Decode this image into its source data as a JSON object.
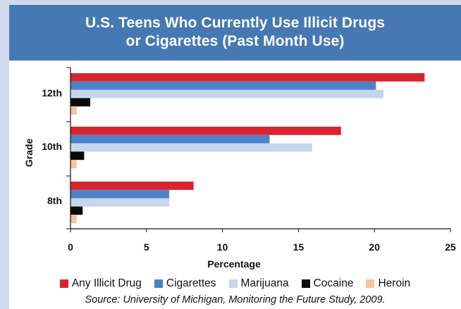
{
  "title_line1": "U.S. Teens Who Currently Use Illicit Drugs",
  "title_line2": "or Cigarettes (Past Month Use)",
  "source": "Source: University of Michigan, Monitoring the Future Study, 2009.",
  "colors": {
    "title_bg": "#4678b3",
    "page_bg": "#d3d9ec",
    "Any Illicit Drug": "#d7242f",
    "Cigarettes": "#4c82c7",
    "Marijuana": "#c6d6ec",
    "Cocaine": "#0a0a0a",
    "Heroin": "#f7c39a"
  },
  "chart_data": {
    "type": "bar",
    "orientation": "horizontal",
    "categories": [
      "12th",
      "10th",
      "8th"
    ],
    "series": [
      {
        "name": "Any Illicit Drug",
        "values": [
          23.3,
          17.8,
          8.1
        ]
      },
      {
        "name": "Cigarettes",
        "values": [
          20.1,
          13.1,
          6.5
        ]
      },
      {
        "name": "Marijuana",
        "values": [
          20.6,
          15.9,
          6.5
        ]
      },
      {
        "name": "Cocaine",
        "values": [
          1.3,
          0.9,
          0.8
        ]
      },
      {
        "name": "Heroin",
        "values": [
          0.4,
          0.4,
          0.4
        ]
      }
    ],
    "xlabel": "Percentage",
    "ylabel": "Grade",
    "xlim": [
      0,
      25
    ],
    "xticks": [
      0,
      5,
      10,
      15,
      20,
      25
    ],
    "legend_position": "bottom",
    "grid": false
  }
}
